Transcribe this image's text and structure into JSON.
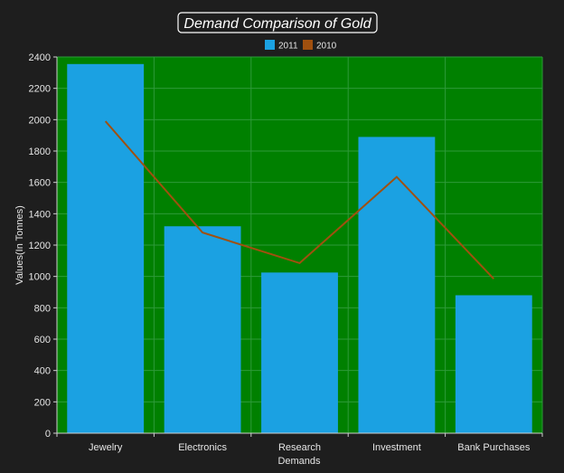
{
  "chart_data": {
    "type": "bar",
    "title": "Demand Comparison of Gold",
    "xlabel": "Demands",
    "ylabel": "Values(In Tonnes)",
    "categories": [
      "Jewelry",
      "Electronics",
      "Research",
      "Investment",
      "Bank Purchases"
    ],
    "ylim": [
      0,
      2400
    ],
    "yticks": [
      0,
      200,
      400,
      600,
      800,
      1000,
      1200,
      1400,
      1600,
      1800,
      2000,
      2200,
      2400
    ],
    "grid": true,
    "legend_position": "top-center",
    "plot_background": "#008000",
    "series": [
      {
        "name": "2011",
        "type": "bar",
        "color": "#1ba1e2",
        "values": [
          2355,
          1320,
          1025,
          1890,
          880
        ]
      },
      {
        "name": "2010",
        "type": "line",
        "color": "#a0500f",
        "values": [
          1990,
          1280,
          1085,
          1635,
          985
        ]
      }
    ]
  }
}
